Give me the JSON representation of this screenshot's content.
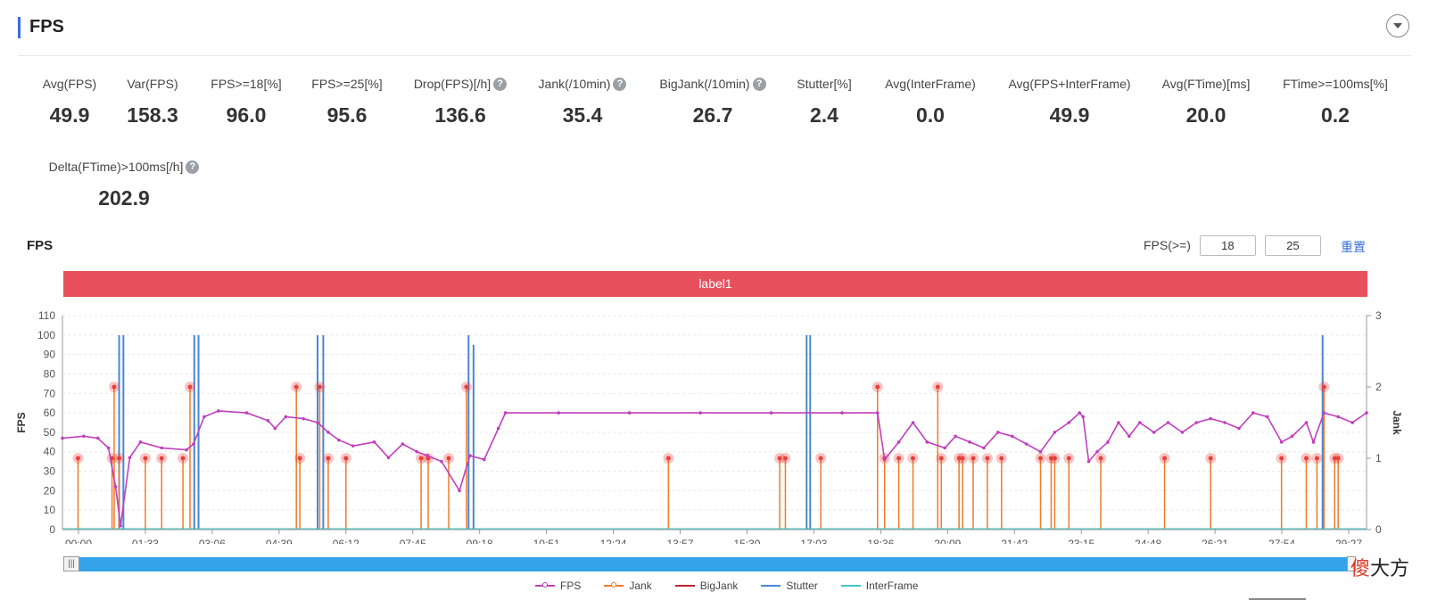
{
  "section": {
    "title": "FPS"
  },
  "stats": [
    {
      "label": "Avg(FPS)",
      "value": "49.9",
      "help": false
    },
    {
      "label": "Var(FPS)",
      "value": "158.3",
      "help": false
    },
    {
      "label": "FPS>=18[%]",
      "value": "96.0",
      "help": false
    },
    {
      "label": "FPS>=25[%]",
      "value": "95.6",
      "help": false
    },
    {
      "label": "Drop(FPS)[/h]",
      "value": "136.6",
      "help": true
    },
    {
      "label": "Jank(/10min)",
      "value": "35.4",
      "help": true
    },
    {
      "label": "BigJank(/10min)",
      "value": "26.7",
      "help": true
    },
    {
      "label": "Stutter[%]",
      "value": "2.4",
      "help": false
    },
    {
      "label": "Avg(InterFrame)",
      "value": "0.0",
      "help": false
    },
    {
      "label": "Avg(FPS+InterFrame)",
      "value": "49.9",
      "help": false
    },
    {
      "label": "Avg(FTime)[ms]",
      "value": "20.0",
      "help": false
    },
    {
      "label": "FTime>=100ms[%]",
      "value": "0.2",
      "help": false
    },
    {
      "label": "Delta(FTime)>100ms[/h]",
      "value": "202.9",
      "help": true
    }
  ],
  "help_glyph": "?",
  "chart_header": {
    "title": "FPS",
    "threshold_label": "FPS(>=)",
    "threshold_low": "18",
    "threshold_high": "25",
    "reset_label": "重置"
  },
  "label_bar": {
    "text": "label1",
    "color": "#e8505e"
  },
  "slider": {
    "start_grip": "|||"
  },
  "watermark": {
    "first": "傻",
    "rest": "大方"
  },
  "colors": {
    "fps": "#c03fbd",
    "jank": "#f07b2a",
    "bigjank": "#b8262b",
    "stutter": "#4b86d6",
    "interframe": "#3fc7c7",
    "marker": "#e8403c"
  },
  "chart_data": {
    "type": "line",
    "xlabel": "",
    "ylabel": "FPS",
    "y2label": "Jank",
    "ylim": [
      0,
      110
    ],
    "y2lim": [
      0,
      3
    ],
    "yticks": [
      0,
      10,
      20,
      30,
      40,
      50,
      60,
      70,
      80,
      90,
      100,
      110
    ],
    "y2ticks": [
      0,
      1,
      2,
      3
    ],
    "xlim": [
      0,
      1840
    ],
    "xticks": [
      "00:00",
      "01:33",
      "03:06",
      "04:39",
      "06:12",
      "07:45",
      "09:18",
      "10:51",
      "12:24",
      "13:57",
      "15:30",
      "17:03",
      "18:36",
      "20:09",
      "21:42",
      "23:15",
      "24:48",
      "26:21",
      "27:54",
      "29:27"
    ],
    "grid": "horizontal",
    "legend": "bottom",
    "fps_series": {
      "name": "FPS",
      "points": [
        [
          0,
          47
        ],
        [
          30,
          48
        ],
        [
          50,
          47
        ],
        [
          65,
          42
        ],
        [
          75,
          22
        ],
        [
          82,
          2
        ],
        [
          95,
          37
        ],
        [
          110,
          45
        ],
        [
          140,
          42
        ],
        [
          175,
          41
        ],
        [
          185,
          44
        ],
        [
          200,
          58
        ],
        [
          220,
          61
        ],
        [
          260,
          60
        ],
        [
          290,
          56
        ],
        [
          300,
          52
        ],
        [
          315,
          58
        ],
        [
          340,
          57
        ],
        [
          360,
          55
        ],
        [
          375,
          50
        ],
        [
          390,
          46
        ],
        [
          410,
          43
        ],
        [
          440,
          45
        ],
        [
          460,
          37
        ],
        [
          480,
          44
        ],
        [
          500,
          40
        ],
        [
          515,
          38
        ],
        [
          535,
          35
        ],
        [
          560,
          20
        ],
        [
          575,
          38
        ],
        [
          595,
          36
        ],
        [
          615,
          52
        ],
        [
          625,
          60
        ],
        [
          700,
          60
        ],
        [
          800,
          60
        ],
        [
          900,
          60
        ],
        [
          1000,
          60
        ],
        [
          1100,
          60
        ],
        [
          1150,
          60
        ],
        [
          1160,
          36
        ],
        [
          1180,
          45
        ],
        [
          1200,
          55
        ],
        [
          1220,
          45
        ],
        [
          1245,
          42
        ],
        [
          1260,
          48
        ],
        [
          1280,
          45
        ],
        [
          1300,
          42
        ],
        [
          1320,
          50
        ],
        [
          1340,
          48
        ],
        [
          1360,
          44
        ],
        [
          1380,
          40
        ],
        [
          1400,
          50
        ],
        [
          1420,
          55
        ],
        [
          1435,
          60
        ],
        [
          1440,
          58
        ],
        [
          1448,
          35
        ],
        [
          1460,
          40
        ],
        [
          1475,
          45
        ],
        [
          1490,
          55
        ],
        [
          1505,
          48
        ],
        [
          1520,
          55
        ],
        [
          1540,
          50
        ],
        [
          1560,
          55
        ],
        [
          1580,
          50
        ],
        [
          1600,
          55
        ],
        [
          1620,
          57
        ],
        [
          1640,
          55
        ],
        [
          1660,
          52
        ],
        [
          1680,
          60
        ],
        [
          1700,
          58
        ],
        [
          1720,
          45
        ],
        [
          1735,
          48
        ],
        [
          1755,
          55
        ],
        [
          1765,
          45
        ],
        [
          1780,
          60
        ],
        [
          1800,
          58
        ],
        [
          1820,
          55
        ],
        [
          1840,
          60
        ]
      ]
    },
    "jank_series": {
      "name": "Jank",
      "spikes": [
        [
          22,
          1
        ],
        [
          70,
          1
        ],
        [
          73,
          2
        ],
        [
          80,
          1
        ],
        [
          117,
          1
        ],
        [
          140,
          1
        ],
        [
          170,
          1
        ],
        [
          180,
          2
        ],
        [
          330,
          2
        ],
        [
          335,
          1
        ],
        [
          363,
          2
        ],
        [
          375,
          1
        ],
        [
          400,
          1
        ],
        [
          506,
          1
        ],
        [
          516,
          1
        ],
        [
          545,
          1
        ],
        [
          570,
          2
        ],
        [
          855,
          1
        ],
        [
          1012,
          1
        ],
        [
          1020,
          1
        ],
        [
          1070,
          1
        ],
        [
          1150,
          2
        ],
        [
          1160,
          1
        ],
        [
          1180,
          1
        ],
        [
          1200,
          1
        ],
        [
          1235,
          2
        ],
        [
          1240,
          1
        ],
        [
          1265,
          1
        ],
        [
          1270,
          1
        ],
        [
          1285,
          1
        ],
        [
          1305,
          1
        ],
        [
          1325,
          1
        ],
        [
          1380,
          1
        ],
        [
          1395,
          1
        ],
        [
          1400,
          1
        ],
        [
          1420,
          1
        ],
        [
          1465,
          1
        ],
        [
          1555,
          1
        ],
        [
          1620,
          1
        ],
        [
          1720,
          1
        ],
        [
          1755,
          1
        ],
        [
          1770,
          1
        ],
        [
          1780,
          2
        ],
        [
          1795,
          1
        ],
        [
          1800,
          1
        ]
      ]
    },
    "stutter_series": {
      "name": "Stutter",
      "spikes": [
        [
          80,
          100
        ],
        [
          86,
          100
        ],
        [
          186,
          100
        ],
        [
          192,
          100
        ],
        [
          360,
          100
        ],
        [
          368,
          100
        ],
        [
          573,
          100
        ],
        [
          580,
          95
        ],
        [
          1050,
          100
        ],
        [
          1055,
          100
        ],
        [
          1778,
          100
        ]
      ]
    },
    "bigjank_series": {
      "name": "BigJank"
    },
    "interframe_series": {
      "name": "InterFrame"
    }
  }
}
